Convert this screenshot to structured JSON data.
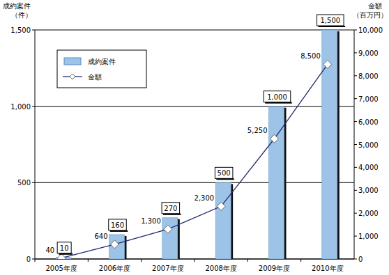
{
  "chart_data": {
    "type": "bar",
    "y_label": [
      "成約案件",
      "（件）"
    ],
    "y2_label": [
      "金額",
      "（百万円）"
    ],
    "categories": [
      "2005年度",
      "2006年度",
      "2007年度",
      "2008年度",
      "2009年度",
      "2010年度"
    ],
    "series": [
      {
        "name": "成約案件",
        "type": "bar",
        "color": "#9dc3e6",
        "values": [
          10,
          160,
          270,
          500,
          1000,
          1500
        ],
        "value_labels": [
          "10",
          "160",
          "270",
          "500",
          "1,000",
          "1,500"
        ]
      },
      {
        "name": "金額",
        "type": "line",
        "axis": "y2",
        "color": "#1f2a6e",
        "marker": "diamond",
        "values": [
          40,
          640,
          1300,
          2300,
          5250,
          8500
        ],
        "value_labels": [
          "40",
          "640",
          "1,300",
          "2,300",
          "5,250",
          "8,500"
        ]
      }
    ],
    "ylim": [
      0,
      1500
    ],
    "yticks": [
      0,
      500,
      {
        "value": 1000,
        "label": "1,000"
      },
      {
        "value": 1500,
        "label": "1,500"
      }
    ],
    "y2lim": [
      0,
      10000
    ],
    "y2ticks": [
      0,
      {
        "value": 1000,
        "label": "1,000"
      },
      {
        "value": 2000,
        "label": "2,000"
      },
      {
        "value": 3000,
        "label": "3,000"
      },
      {
        "value": 4000,
        "label": "4,000"
      },
      {
        "value": 5000,
        "label": "5,000"
      },
      {
        "value": 6000,
        "label": "6,000"
      },
      {
        "value": 7000,
        "label": "7,000"
      },
      {
        "value": 8000,
        "label": "8,000"
      },
      {
        "value": 9000,
        "label": "9,000"
      },
      {
        "value": 10000,
        "label": "10,000"
      }
    ],
    "grid": true,
    "legend": "upper left",
    "data_labels": true
  }
}
